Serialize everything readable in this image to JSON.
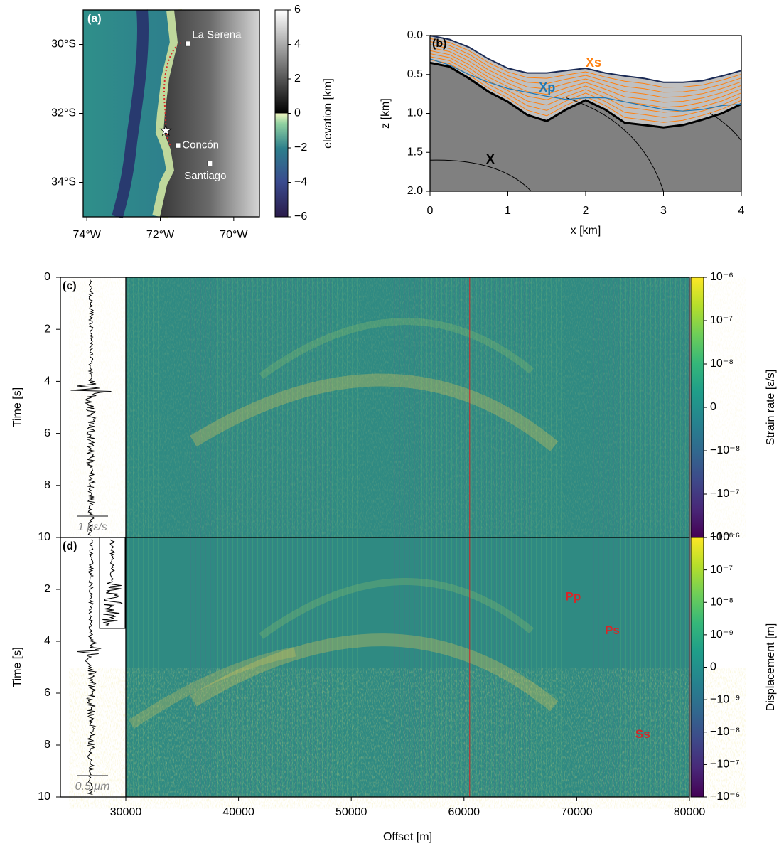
{
  "chart_data": [
    {
      "type": "map",
      "panel": "(a)",
      "xlim": [
        -74.1,
        -69.3
      ],
      "ylim": [
        -35,
        -29
      ],
      "xticks": [
        {
          "value": -74,
          "label": "74°W"
        },
        {
          "value": -72,
          "label": "72°W"
        },
        {
          "value": -70,
          "label": "70°W"
        }
      ],
      "yticks": [
        {
          "value": -30,
          "label": "30°S"
        },
        {
          "value": -32,
          "label": "32°S"
        },
        {
          "value": -34,
          "label": "34°S"
        }
      ],
      "places": [
        {
          "name": "La Serena",
          "lon": -71.25,
          "lat": -29.98
        },
        {
          "name": "Concón",
          "lon": -71.52,
          "lat": -32.93
        },
        {
          "name": "Santiago",
          "lon": -70.65,
          "lat": -33.45
        }
      ],
      "star": {
        "lon": -71.85,
        "lat": -32.5
      },
      "colorbar": {
        "label": "elevation [km]",
        "lim": [
          -6,
          6
        ],
        "ticks": [
          6,
          4,
          2,
          0,
          {
            "value": -2,
            "label": "−2"
          },
          {
            "value": -4,
            "label": "−4"
          },
          {
            "value": -6,
            "label": "−6"
          }
        ]
      }
    },
    {
      "type": "section",
      "panel": "(b)",
      "xlabel": "x [km]",
      "ylabel": "z [km]",
      "xlim": [
        0,
        4
      ],
      "ylim": [
        0,
        2
      ],
      "inverted": true,
      "xticks": [
        0,
        1,
        2,
        3,
        4
      ],
      "yticks": [
        {
          "value": 0,
          "label": "0.0"
        },
        0.5,
        {
          "value": 1,
          "label": "1.0"
        },
        1.5,
        {
          "value": 2,
          "label": "2.0"
        }
      ],
      "x": [
        0,
        0.25,
        0.5,
        0.75,
        1,
        1.25,
        1.5,
        1.75,
        2,
        2.25,
        2.5,
        2.75,
        3,
        3.25,
        3.5,
        3.75,
        4
      ],
      "series": [
        {
          "color": "#1a2a55",
          "values": [
            0.0,
            0.05,
            0.15,
            0.3,
            0.42,
            0.48,
            0.48,
            0.45,
            0.42,
            0.48,
            0.52,
            0.55,
            0.6,
            0.6,
            0.58,
            0.52,
            0.45
          ]
        },
        {
          "color": "#000000",
          "values": [
            0.35,
            0.4,
            0.55,
            0.72,
            0.85,
            1.02,
            1.1,
            0.95,
            0.83,
            0.95,
            1.12,
            1.15,
            1.18,
            1.15,
            1.08,
            1.0,
            0.88
          ]
        },
        {
          "color": "#1f77b4",
          "values": [
            0.3,
            0.38,
            0.5,
            0.6,
            0.68,
            0.73,
            0.78,
            0.82,
            0.8,
            0.8,
            0.85,
            0.9,
            0.95,
            0.97,
            0.95,
            0.9,
            0.88
          ]
        }
      ],
      "annotations": [
        {
          "text": "Xs",
          "color": "#ff7f0e"
        },
        {
          "text": "Xp",
          "color": "#1f77b4"
        },
        {
          "text": "X",
          "color": "#000000"
        }
      ]
    },
    {
      "type": "image",
      "panel": "(c)",
      "ylabel": "Time [s]",
      "ylim": [
        0,
        10
      ],
      "yticks": [
        0,
        2,
        4,
        6,
        8,
        10
      ],
      "xlim": [
        30000,
        80000
      ],
      "vline": 60500,
      "vline_color": "#d62728",
      "scale_bar": "1 με/s",
      "colorbar": {
        "label": "Strain rate [ε/s]",
        "scale": "symlog",
        "linthresh": 1e-08,
        "lim": [
          -1e-06,
          1e-06
        ],
        "ticks": [
          {
            "value": 1e-06,
            "label": "10⁻⁶"
          },
          {
            "value": 1e-07,
            "label": "10⁻⁷"
          },
          {
            "value": 1e-08,
            "label": "10⁻⁸"
          },
          0,
          {
            "value": -1e-08,
            "label": "−10⁻⁸"
          },
          {
            "value": -1e-07,
            "label": "−10⁻⁷"
          },
          {
            "value": -1e-06,
            "label": "−10⁻⁶"
          }
        ]
      }
    },
    {
      "type": "image",
      "panel": "(d)",
      "ylabel": "Time [s]",
      "xlabel": "Offset [m]",
      "ylim": [
        0,
        10
      ],
      "yticks": [
        2,
        4,
        6,
        8,
        10
      ],
      "xlim": [
        30000,
        80000
      ],
      "xticks": [
        30000,
        40000,
        50000,
        60000,
        70000,
        80000
      ],
      "vline": 60500,
      "vline_color": "#d62728",
      "scale_bar": "0.5 μm",
      "annotations": [
        {
          "text": "Pp",
          "color": "#d62728"
        },
        {
          "text": "Ps",
          "color": "#d62728"
        },
        {
          "text": "Ss",
          "color": "#d62728"
        }
      ],
      "colorbar": {
        "label": "Displacement [m]",
        "scale": "symlog",
        "linthresh": 1e-09,
        "lim": [
          -1e-06,
          1e-06
        ],
        "ticks": [
          {
            "value": 1e-06,
            "label": "10⁻⁶"
          },
          {
            "value": 1e-07,
            "label": "10⁻⁷"
          },
          {
            "value": 1e-08,
            "label": "10⁻⁸"
          },
          {
            "value": 1e-09,
            "label": "10⁻⁹"
          },
          0,
          {
            "value": -1e-09,
            "label": "−10⁻⁹"
          },
          {
            "value": -1e-08,
            "label": "−10⁻⁸"
          },
          {
            "value": -1e-07,
            "label": "−10⁻⁷"
          },
          {
            "value": -1e-06,
            "label": "−10⁻⁶"
          }
        ]
      }
    }
  ]
}
